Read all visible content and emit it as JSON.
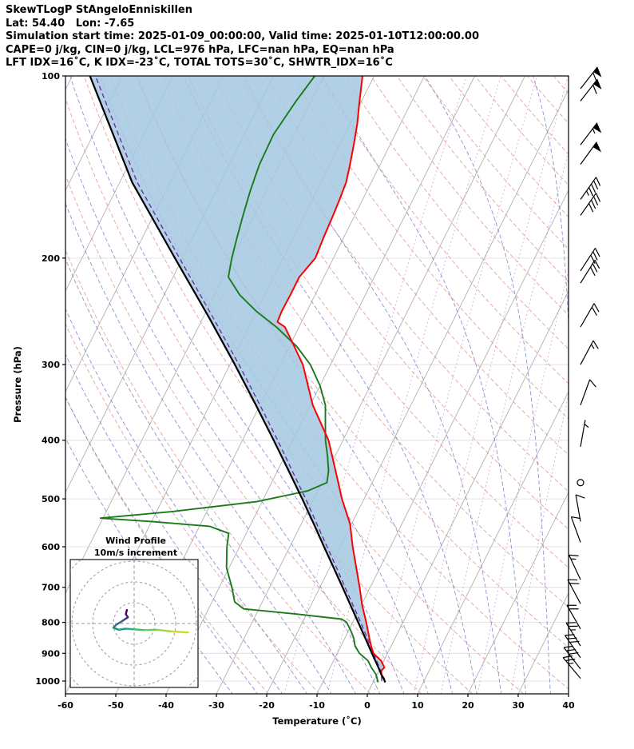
{
  "header": {
    "line1": "SkewTLogP StAngeloEnniskillen",
    "line2": "Lat: 54.40   Lon: -7.65",
    "line3": "Simulation start time: 2025-01-09_00:00:00, Valid time: 2025-01-10T12:00:00.00",
    "line4": "CAPE=0 j/kg, CIN=0 j/kg, LCL=976 hPa, LFC=nan hPa, EQ=nan hPa",
    "line5": "LFT IDX=16˚C, K IDX=-23˚C, TOTAL TOTS=30˚C, SHWTR_IDX=16˚C"
  },
  "chart_data": {
    "type": "line",
    "subtype": "skew-t-log-p",
    "title": "SkewTLogP StAngeloEnniskillen",
    "skew": 0.5,
    "x_axis": {
      "label": "Temperature (˚C)",
      "min": -60,
      "max": 40,
      "ticks": [
        -60,
        -50,
        -40,
        -30,
        -20,
        -10,
        0,
        10,
        20,
        30,
        40
      ]
    },
    "y_axis": {
      "label": "Pressure (hPa)",
      "top_value": 100,
      "bottom_value": 1050,
      "scale": "log",
      "ticks": [
        100,
        200,
        300,
        400,
        500,
        600,
        700,
        800,
        900,
        1000
      ]
    },
    "colors": {
      "temperature": "#ff0000",
      "dewpoint": "#1a7a1a",
      "parcel": "#000000",
      "parcel_adiabat": "#7030a0",
      "isotherm": "#b8b8b8",
      "dry_adiabat": "#e09090",
      "moist_adiabat": "#7d7dcc",
      "mixing_ratio": "#bf7fbf",
      "grid": "#dcdcdc",
      "shade": "#a5c8e1",
      "barb": "#000000"
    },
    "background": {
      "isotherms_c": {
        "min": -120,
        "max": 40,
        "step": 10
      },
      "dry_adiabats_theta_k": {
        "min": 250,
        "max": 490,
        "step": 10
      },
      "moist_adiabats_start_c": {
        "min": -30,
        "max": 45,
        "step": 5
      },
      "mixing_ratio_g_kg": [
        1,
        2,
        4,
        7,
        10,
        16,
        24
      ]
    },
    "shading": {
      "between": [
        "parcel",
        "temperature"
      ],
      "opacity": 0.85
    },
    "series": [
      {
        "name": "temperature",
        "points": [
          [
            1005,
            2.3
          ],
          [
            1000,
            2.2
          ],
          [
            990,
            1.8
          ],
          [
            975,
            0.8
          ],
          [
            960,
            0.5
          ],
          [
            950,
            0.8
          ],
          [
            925,
            -0.6
          ],
          [
            900,
            -2.8
          ],
          [
            875,
            -4.0
          ],
          [
            850,
            -5.1
          ],
          [
            800,
            -7.3
          ],
          [
            750,
            -9.8
          ],
          [
            700,
            -12.1
          ],
          [
            650,
            -14.7
          ],
          [
            600,
            -17.5
          ],
          [
            550,
            -20.3
          ],
          [
            500,
            -24.4
          ],
          [
            450,
            -28.4
          ],
          [
            400,
            -32.9
          ],
          [
            350,
            -39.5
          ],
          [
            300,
            -45.5
          ],
          [
            280,
            -49.0
          ],
          [
            260,
            -52.8
          ],
          [
            255,
            -54.8
          ],
          [
            245,
            -55.0
          ],
          [
            230,
            -54.9
          ],
          [
            215,
            -54.9
          ],
          [
            200,
            -53.6
          ],
          [
            185,
            -54.0
          ],
          [
            170,
            -54.3
          ],
          [
            160,
            -54.6
          ],
          [
            150,
            -55.0
          ],
          [
            140,
            -56.0
          ],
          [
            130,
            -57.2
          ],
          [
            120,
            -58.6
          ],
          [
            110,
            -60.4
          ],
          [
            100,
            -62.3
          ]
        ]
      },
      {
        "name": "dewpoint",
        "points": [
          [
            1005,
            1.0
          ],
          [
            1000,
            0.8
          ],
          [
            990,
            0.4
          ],
          [
            975,
            -0.2
          ],
          [
            950,
            -1.8
          ],
          [
            925,
            -3.2
          ],
          [
            900,
            -5.6
          ],
          [
            875,
            -7.2
          ],
          [
            850,
            -8.2
          ],
          [
            825,
            -9.6
          ],
          [
            800,
            -11.2
          ],
          [
            790,
            -12.5
          ],
          [
            775,
            -22.0
          ],
          [
            760,
            -33.0
          ],
          [
            740,
            -35.5
          ],
          [
            700,
            -37.5
          ],
          [
            650,
            -40.5
          ],
          [
            600,
            -42.5
          ],
          [
            570,
            -43.5
          ],
          [
            555,
            -48.0
          ],
          [
            545,
            -60.0
          ],
          [
            538,
            -70.5
          ],
          [
            525,
            -57.0
          ],
          [
            505,
            -41.0
          ],
          [
            485,
            -32.0
          ],
          [
            470,
            -29.0
          ],
          [
            450,
            -29.8
          ],
          [
            425,
            -31.5
          ],
          [
            400,
            -33.5
          ],
          [
            375,
            -35.2
          ],
          [
            350,
            -37.0
          ],
          [
            325,
            -40.0
          ],
          [
            300,
            -44.0
          ],
          [
            280,
            -48.5
          ],
          [
            260,
            -54.5
          ],
          [
            245,
            -60.0
          ],
          [
            230,
            -65.0
          ],
          [
            215,
            -69.0
          ],
          [
            200,
            -70.2
          ],
          [
            185,
            -71.2
          ],
          [
            170,
            -72.2
          ],
          [
            155,
            -73.2
          ],
          [
            140,
            -74.0
          ],
          [
            125,
            -74.2
          ],
          [
            110,
            -73.0
          ],
          [
            100,
            -71.8
          ]
        ]
      },
      {
        "name": "parcel",
        "points": [
          [
            1005,
            2.4
          ],
          [
            1000,
            2.2
          ],
          [
            976,
            0.9
          ],
          [
            950,
            -0.4
          ],
          [
            900,
            -3.1
          ],
          [
            850,
            -5.9
          ],
          [
            800,
            -8.9
          ],
          [
            750,
            -12.1
          ],
          [
            700,
            -15.5
          ],
          [
            650,
            -19.2
          ],
          [
            600,
            -23.2
          ],
          [
            550,
            -27.5
          ],
          [
            500,
            -32.3
          ],
          [
            450,
            -37.7
          ],
          [
            400,
            -43.8
          ],
          [
            350,
            -50.8
          ],
          [
            300,
            -59.0
          ],
          [
            250,
            -69.0
          ],
          [
            200,
            -81.5
          ],
          [
            150,
            -97.5
          ],
          [
            100,
            -116.5
          ]
        ]
      },
      {
        "name": "parcel_adiabat",
        "points": [
          [
            1000,
            1.6
          ],
          [
            976,
            0.9
          ],
          [
            950,
            -0.2
          ],
          [
            900,
            -2.8
          ],
          [
            850,
            -5.5
          ],
          [
            800,
            -8.4
          ],
          [
            750,
            -11.6
          ],
          [
            700,
            -15.0
          ],
          [
            650,
            -18.6
          ],
          [
            600,
            -22.6
          ],
          [
            550,
            -26.9
          ],
          [
            500,
            -31.6
          ],
          [
            450,
            -37.0
          ],
          [
            400,
            -43.0
          ],
          [
            350,
            -50.0
          ],
          [
            300,
            -58.2
          ],
          [
            250,
            -68.2
          ],
          [
            200,
            -80.6
          ],
          [
            150,
            -96.5
          ],
          [
            100,
            -115.4
          ]
        ]
      }
    ],
    "indices": {
      "cape_j_kg": 0,
      "cin_j_kg": 0,
      "lcl_hpa": 976,
      "lfc_hpa": "nan",
      "eq_hpa": "nan",
      "lft_idx_c": 16,
      "k_idx_c": -23,
      "total_tots_c": 30,
      "shwtr_idx_c": 16
    },
    "wind_barbs": [
      {
        "p": 990,
        "dir_deg": 320,
        "speed_kt": 25
      },
      {
        "p": 955,
        "dir_deg": 322,
        "speed_kt": 28
      },
      {
        "p": 915,
        "dir_deg": 325,
        "speed_kt": 28
      },
      {
        "p": 875,
        "dir_deg": 328,
        "speed_kt": 25
      },
      {
        "p": 820,
        "dir_deg": 330,
        "speed_kt": 22
      },
      {
        "p": 745,
        "dir_deg": 332,
        "speed_kt": 18
      },
      {
        "p": 680,
        "dir_deg": 335,
        "speed_kt": 15
      },
      {
        "p": 590,
        "dir_deg": 340,
        "speed_kt": 10
      },
      {
        "p": 545,
        "dir_deg": 350,
        "speed_kt": 8
      },
      {
        "p": 470,
        "dir_deg": 0,
        "speed_kt": 0
      },
      {
        "p": 410,
        "dir_deg": 10,
        "speed_kt": 5
      },
      {
        "p": 350,
        "dir_deg": 20,
        "speed_kt": 10
      },
      {
        "p": 300,
        "dir_deg": 28,
        "speed_kt": 15
      },
      {
        "p": 260,
        "dir_deg": 30,
        "speed_kt": 22
      },
      {
        "p": 220,
        "dir_deg": 32,
        "speed_kt": 30
      },
      {
        "p": 210,
        "dir_deg": 33,
        "speed_kt": 32
      },
      {
        "p": 170,
        "dir_deg": 35,
        "speed_kt": 42
      },
      {
        "p": 160,
        "dir_deg": 35,
        "speed_kt": 45
      },
      {
        "p": 140,
        "dir_deg": 36,
        "speed_kt": 50
      },
      {
        "p": 130,
        "dir_deg": 37,
        "speed_kt": 55
      },
      {
        "p": 110,
        "dir_deg": 38,
        "speed_kt": 60
      },
      {
        "p": 105,
        "dir_deg": 38,
        "speed_kt": 62
      }
    ],
    "hodograph": {
      "title_line1": "Wind Profile",
      "title_line2": "10m/s increment",
      "ring_interval_ms": 10,
      "rings_ms": [
        10,
        20,
        30,
        40
      ],
      "points_uv_ms": [
        [
          -3.5,
          6.5
        ],
        [
          -4,
          4.5
        ],
        [
          -3,
          3
        ],
        [
          -4.5,
          2
        ],
        [
          -6,
          1
        ],
        [
          -8.5,
          -0.5
        ],
        [
          -10,
          -2
        ],
        [
          -7.5,
          -3
        ],
        [
          -4,
          -2.5
        ],
        [
          0,
          -2.8
        ],
        [
          5,
          -3.2
        ],
        [
          11,
          -3
        ],
        [
          18,
          -3.8
        ],
        [
          26,
          -4.3
        ]
      ],
      "point_colors": [
        "#440154",
        "#46186c",
        "#45277d",
        "#3e4989",
        "#34608d",
        "#2b748e",
        "#24878e",
        "#1f998a",
        "#25ab82",
        "#40bd72",
        "#67cc5c",
        "#98d83e",
        "#c8e020",
        "#fde725"
      ]
    }
  }
}
